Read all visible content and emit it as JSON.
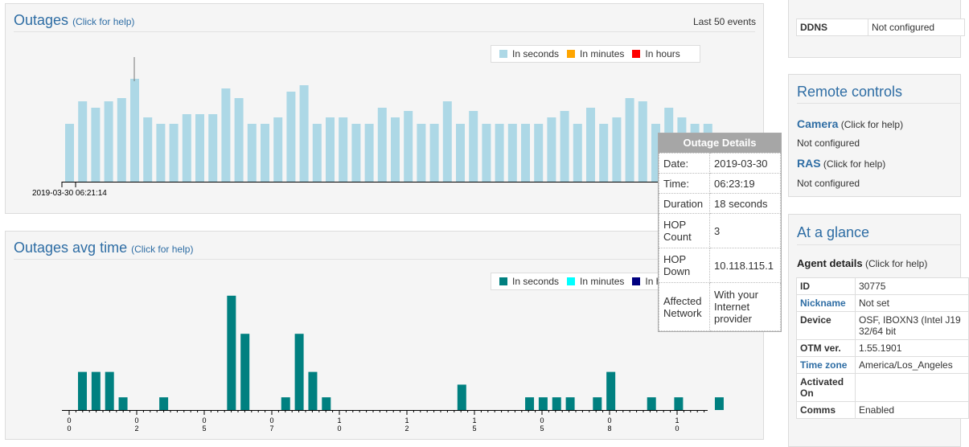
{
  "outages": {
    "title": "Outages",
    "help": "(Click for help)",
    "last_events": "Last 50 events",
    "legend": [
      {
        "label": "In seconds",
        "color": "#add8e6"
      },
      {
        "label": "In minutes",
        "color": "#ffa500"
      },
      {
        "label": "In hours",
        "color": "#ff0000"
      }
    ],
    "x_start_label": "2019-03-30 06:21:14"
  },
  "avg": {
    "title": "Outages avg time",
    "help": "(Click for help)",
    "legend": [
      {
        "label": "In seconds",
        "color": "#008080"
      },
      {
        "label": "In minutes",
        "color": "#00ffff"
      },
      {
        "label": "In h",
        "color": "#000080"
      }
    ],
    "tick_labels": [
      {
        "top": "0",
        "bottom": "0"
      },
      {
        "top": "0",
        "bottom": "2"
      },
      {
        "top": "0",
        "bottom": "5"
      },
      {
        "top": "0",
        "bottom": "7"
      },
      {
        "top": "1",
        "bottom": "0"
      },
      {
        "top": "1",
        "bottom": "2"
      },
      {
        "top": "1",
        "bottom": "5"
      },
      {
        "top": "0",
        "bottom": "5"
      },
      {
        "top": "0",
        "bottom": "8"
      },
      {
        "top": "1",
        "bottom": "0"
      }
    ]
  },
  "chart_data": [
    {
      "type": "bar",
      "title": "Outages",
      "series": [
        {
          "name": "In seconds",
          "values": [
            18,
            25,
            23,
            25,
            26,
            32,
            20,
            18,
            18,
            21,
            21,
            21,
            29,
            26,
            18,
            18,
            20,
            28,
            30,
            18,
            20,
            20,
            18,
            18,
            23,
            20,
            22,
            18,
            18,
            25,
            18,
            22,
            18,
            18,
            18,
            18,
            18,
            20,
            22,
            18,
            23,
            18,
            20,
            26,
            25,
            18,
            23,
            20,
            18,
            18
          ]
        }
      ],
      "legend": [
        "In seconds",
        "In minutes",
        "In hours"
      ],
      "ylim": [
        0,
        40
      ]
    },
    {
      "type": "bar",
      "title": "Outages avg time",
      "series": [
        {
          "name": "In seconds",
          "values": [
            3,
            3,
            3,
            1,
            0,
            0,
            1,
            0,
            0,
            0,
            0,
            9,
            6,
            0,
            0,
            1,
            6,
            3,
            1,
            0,
            0,
            0,
            0,
            0,
            0,
            0,
            0,
            0,
            2,
            0,
            0,
            0,
            0,
            1,
            1,
            1,
            1,
            0,
            1,
            3,
            0,
            0,
            1,
            0,
            1,
            0,
            0,
            1
          ]
        }
      ],
      "legend": [
        "In seconds",
        "In minutes",
        "In hours"
      ],
      "ylim": [
        0,
        10
      ]
    }
  ],
  "tooltip": {
    "title": "Outage Details",
    "rows": [
      {
        "k": "Date:",
        "v": "2019-03-30"
      },
      {
        "k": "Time:",
        "v": "06:23:19"
      },
      {
        "k": "Duration",
        "v": "18 seconds"
      },
      {
        "k": "HOP Count",
        "v": "3"
      },
      {
        "k": "HOP Down",
        "v": "10.118.115.1"
      },
      {
        "k": "Affected Network",
        "v": "With your Internet provider"
      }
    ]
  },
  "sidebar": {
    "ddns_label": "DDNS",
    "ddns_value": "Not configured",
    "remote_title": "Remote controls",
    "camera_label": "Camera",
    "camera_help": "(Click for help)",
    "camera_status": "Not configured",
    "ras_label": "RAS",
    "ras_help": "(Click for help)",
    "ras_status": "Not configured",
    "glance_title": "At a glance",
    "agent_title": "Agent details",
    "agent_help": "(Click for help)",
    "agent_rows": [
      {
        "k": "ID",
        "v": "30775",
        "link": false
      },
      {
        "k": "Nickname",
        "v": "Not set",
        "link": true
      },
      {
        "k": "Device",
        "v": "OSF, IBOXN3 (Intel J19 32/64 bit",
        "link": false
      },
      {
        "k": "OTM ver.",
        "v": "1.55.1901",
        "link": false
      },
      {
        "k": "Time zone",
        "v": "America/Los_Angeles",
        "link": true
      },
      {
        "k": "Activated On",
        "v": "",
        "link": false
      },
      {
        "k": "Comms",
        "v": "Enabled",
        "link": false
      }
    ]
  }
}
